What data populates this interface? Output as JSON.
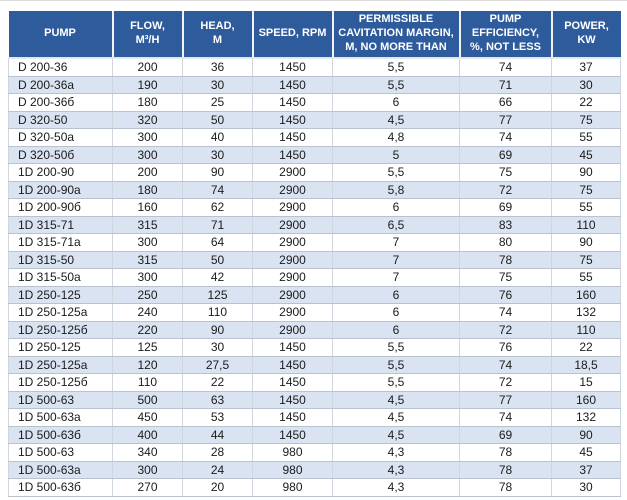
{
  "colors": {
    "header_bg": "#2e5b9c",
    "header_text": "#ffffff",
    "alt_row_bg": "#d9e3f1",
    "row_bg": "#ffffff",
    "grid_line": "#b9c2cd",
    "body_text": "#1b1b1b"
  },
  "table": {
    "columns": [
      {
        "name": "pump",
        "label": "PUMP"
      },
      {
        "name": "flow",
        "label": "FLOW,\nM³/H"
      },
      {
        "name": "head",
        "label": "HEAD,\nM"
      },
      {
        "name": "speed",
        "label": "SPEED, RPM"
      },
      {
        "name": "cavitation-margin",
        "label": "PERMISSIBLE\nCAVITATION MARGIN,\nM, NO MORE THAN"
      },
      {
        "name": "efficiency",
        "label": "PUMP\nEFFICIENCY,\n%, NOT LESS"
      },
      {
        "name": "power",
        "label": "POWER,\nKW"
      }
    ],
    "rows": [
      [
        "D 200-36",
        "200",
        "36",
        "1450",
        "5,5",
        "74",
        "37"
      ],
      [
        "D 200-36a",
        "190",
        "30",
        "1450",
        "5,5",
        "71",
        "30"
      ],
      [
        "D 200-36б",
        "180",
        "25",
        "1450",
        "6",
        "66",
        "22"
      ],
      [
        "D 320-50",
        "320",
        "50",
        "1450",
        "4,5",
        "77",
        "75"
      ],
      [
        "D 320-50a",
        "300",
        "40",
        "1450",
        "4,8",
        "74",
        "55"
      ],
      [
        "D 320-50б",
        "300",
        "30",
        "1450",
        "5",
        "69",
        "45"
      ],
      [
        "1D 200-90",
        "200",
        "90",
        "2900",
        "5,5",
        "75",
        "90"
      ],
      [
        "1D 200-90a",
        "180",
        "74",
        "2900",
        "5,8",
        "72",
        "75"
      ],
      [
        "1D 200-90б",
        "160",
        "62",
        "2900",
        "6",
        "69",
        "55"
      ],
      [
        "1D 315-71",
        "315",
        "71",
        "2900",
        "6,5",
        "83",
        "110"
      ],
      [
        "1D 315-71a",
        "300",
        "64",
        "2900",
        "7",
        "80",
        "90"
      ],
      [
        "1D 315-50",
        "315",
        "50",
        "2900",
        "7",
        "78",
        "75"
      ],
      [
        "1D 315-50a",
        "300",
        "42",
        "2900",
        "7",
        "75",
        "55"
      ],
      [
        "1D 250-125",
        "250",
        "125",
        "2900",
        "6",
        "76",
        "160"
      ],
      [
        "1D 250-125a",
        "240",
        "110",
        "2900",
        "6",
        "74",
        "132"
      ],
      [
        "1D 250-125б",
        "220",
        "90",
        "2900",
        "6",
        "72",
        "110"
      ],
      [
        "1D 250-125",
        "125",
        "30",
        "1450",
        "5,5",
        "76",
        "22"
      ],
      [
        "1D 250-125a",
        "120",
        "27,5",
        "1450",
        "5,5",
        "74",
        "18,5"
      ],
      [
        "1D 250-125б",
        "110",
        "22",
        "1450",
        "5,5",
        "72",
        "15"
      ],
      [
        "1D 500-63",
        "500",
        "63",
        "1450",
        "4,5",
        "77",
        "160"
      ],
      [
        "1D 500-63a",
        "450",
        "53",
        "1450",
        "4,5",
        "74",
        "132"
      ],
      [
        "1D 500-63б",
        "400",
        "44",
        "1450",
        "4,5",
        "69",
        "90"
      ],
      [
        "1D 500-63",
        "340",
        "28",
        "980",
        "4,3",
        "78",
        "45"
      ],
      [
        "1D 500-63a",
        "300",
        "24",
        "980",
        "4,3",
        "78",
        "37"
      ],
      [
        "1D 500-63б",
        "270",
        "20",
        "980",
        "4,3",
        "78",
        "30"
      ]
    ]
  }
}
